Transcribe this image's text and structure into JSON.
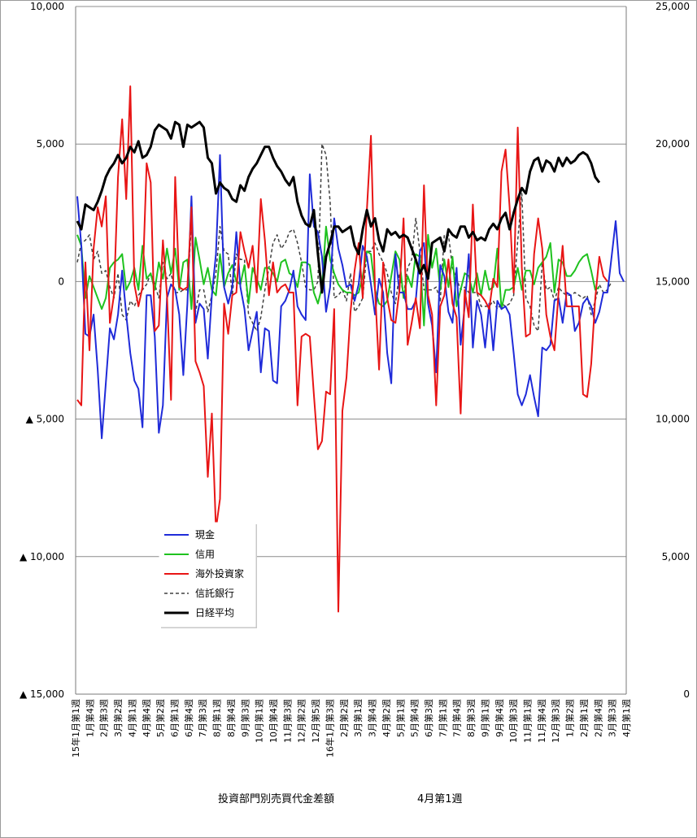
{
  "chart_data": {
    "type": "line",
    "title": "投資部門別売買代金差額",
    "subtitle": "4月第1週",
    "left_axis": {
      "ylim": [
        -15000,
        10000
      ],
      "ticks": [
        {
          "value": 10000,
          "label": "10,000"
        },
        {
          "value": 5000,
          "label": "5,000"
        },
        {
          "value": 0,
          "label": "0"
        },
        {
          "value": -5000,
          "label": "▲ 5,000"
        },
        {
          "value": -10000,
          "label": "▲ 10,000"
        },
        {
          "value": -15000,
          "label": "▲ 15,000"
        }
      ]
    },
    "right_axis": {
      "ylim": [
        0,
        25000
      ],
      "ticks": [
        {
          "value": 25000,
          "label": "25,000"
        },
        {
          "value": 20000,
          "label": "20,000"
        },
        {
          "value": 15000,
          "label": "15,000"
        },
        {
          "value": 10000,
          "label": "10,000"
        },
        {
          "value": 5000,
          "label": "5,000"
        },
        {
          "value": 0,
          "label": "0"
        }
      ]
    },
    "grid": true,
    "legend_position": "lower-left",
    "x_tick_labels": [
      "15年1月第1週",
      "1月第4週",
      "2月第3週",
      "3月第2週",
      "4月第1週",
      "4月第4週",
      "5月第2週",
      "6月第1週",
      "6月第4週",
      "7月第3週",
      "8月第1週",
      "8月第4週",
      "9月第3週",
      "10月第1週",
      "10月第4週",
      "11月第3週",
      "12月第2週",
      "12月第5週",
      "16年1月第3週",
      "2月第2週",
      "3月第1週",
      "3月第4週",
      "4月第2週",
      "5月第1週",
      "5月第4週",
      "6月第3週",
      "7月第1週",
      "7月第4週",
      "8月第3週",
      "9月第1週",
      "9月第4週",
      "10月第3週",
      "11月第1週",
      "11月第4週",
      "12月第3週",
      "1月第2週",
      "2月第1週",
      "2月第4週",
      "3月第3週",
      "4月第1週"
    ],
    "series": [
      {
        "name": "現金",
        "axis": "left",
        "color": "#1f2bd9",
        "style": "solid",
        "values": [
          3100,
          1300,
          -1900,
          -2000,
          -1200,
          -3200,
          -5700,
          -3700,
          -1700,
          -2100,
          -1200,
          400,
          -1200,
          -2600,
          -3600,
          -3900,
          -5300,
          -500,
          -500,
          -2000,
          -5500,
          -4500,
          -600,
          -100,
          -300,
          -1200,
          -3400,
          -800,
          3100,
          -1500,
          -800,
          -1000,
          -2800,
          -500,
          1000,
          4600,
          -200,
          -800,
          -200,
          1800,
          -200,
          -1000,
          -2500,
          -1800,
          -1100,
          -3300,
          -1700,
          -1800,
          -3600,
          -3700,
          -900,
          -700,
          -300,
          400,
          -900,
          -1200,
          -1400,
          3900,
          2000,
          1800,
          900,
          -1100,
          -200,
          2300,
          1200,
          600,
          -200,
          -100,
          -700,
          -100,
          1300,
          900,
          -100,
          -1200,
          100,
          -400,
          -2600,
          -3700,
          1000,
          -400,
          -400,
          -1000,
          -1000,
          -700,
          1100,
          1400,
          -800,
          -1600,
          -3300,
          600,
          200,
          -1100,
          -1500,
          500,
          -2300,
          -900,
          1000,
          -2400,
          -700,
          -1200,
          -2400,
          -800,
          -2500,
          -700,
          -1000,
          -900,
          -1200,
          -2600,
          -4100,
          -4500,
          -4100,
          -3400,
          -4200,
          -4900,
          -2400,
          -2500,
          -2300,
          -700,
          -600,
          -1500,
          -400,
          -500,
          -1800,
          -1500,
          -800,
          -600,
          -900,
          -1500,
          -1100,
          -400,
          -400,
          900,
          2200,
          300,
          0
        ]
      },
      {
        "name": "信用",
        "axis": "left",
        "color": "#1fc21f",
        "style": "solid",
        "values": [
          1700,
          1300,
          -600,
          200,
          -200,
          -600,
          -1000,
          -600,
          500,
          700,
          800,
          1000,
          -300,
          0,
          500,
          -300,
          1300,
          100,
          300,
          -300,
          700,
          100,
          1200,
          300,
          1200,
          -300,
          700,
          800,
          -1000,
          1600,
          800,
          -100,
          500,
          -300,
          -500,
          1000,
          -200,
          300,
          600,
          0,
          -100,
          600,
          -800,
          500,
          100,
          -300,
          500,
          500,
          300,
          0,
          700,
          800,
          300,
          200,
          -200,
          700,
          700,
          600,
          -400,
          -800,
          -200,
          2000,
          800,
          300,
          -100,
          -300,
          -400,
          -400,
          -500,
          -400,
          200,
          1100,
          1000,
          -300,
          -800,
          -900,
          -700,
          200,
          1100,
          800,
          -600,
          200,
          -200,
          1000,
          900,
          -1600,
          1700,
          500,
          1200,
          -300,
          800,
          -200,
          900,
          -900,
          -300,
          300,
          200,
          -400,
          300,
          -500,
          400,
          -300,
          -200,
          1200,
          -1000,
          -300,
          -300,
          -200,
          500,
          -300,
          400,
          400,
          -100,
          500,
          700,
          900,
          1400,
          -400,
          800,
          700,
          200,
          200,
          400,
          700,
          900,
          1000,
          400,
          -300,
          -200
        ]
      },
      {
        "name": "海外投資家",
        "axis": "left",
        "color": "#e81515",
        "style": "solid",
        "values": [
          -4300,
          -4500,
          700,
          -2500,
          1200,
          2700,
          2000,
          3100,
          -1500,
          -500,
          3800,
          5900,
          3000,
          7100,
          -100,
          -900,
          -200,
          4300,
          3600,
          -1800,
          -1600,
          1500,
          -500,
          -4300,
          3800,
          -200,
          -300,
          -200,
          2700,
          -2900,
          -3300,
          -3800,
          -7100,
          -4800,
          -9000,
          -7900,
          -800,
          -1900,
          -500,
          -400,
          1800,
          1100,
          500,
          1300,
          -400,
          3000,
          1500,
          -500,
          700,
          -400,
          -200,
          -100,
          -400,
          -400,
          -4500,
          -2000,
          -1900,
          -2000,
          -4100,
          -6100,
          -5800,
          -4000,
          -4100,
          -1000,
          -12000,
          -4700,
          -3500,
          -1100,
          400,
          1400,
          -600,
          2600,
          5300,
          -300,
          -3200,
          700,
          -600,
          -1400,
          -1500,
          -300,
          2300,
          -2300,
          -1500,
          -600,
          -1700,
          3500,
          -500,
          -1200,
          -4500,
          -900,
          -500,
          800,
          -800,
          -1300,
          -4800,
          -300,
          -1300,
          2800,
          -400,
          -500,
          -700,
          -1000,
          100,
          -200,
          4000,
          4800,
          2700,
          -400,
          5600,
          500,
          -2000,
          -1900,
          1000,
          2300,
          1200,
          -1200,
          -2000,
          -2500,
          -400,
          1300,
          -900,
          -900,
          -900,
          -900,
          -4100,
          -4200,
          -3000,
          -600,
          900,
          200,
          0
        ]
      },
      {
        "name": "信託銀行",
        "axis": "left",
        "color": "#404040",
        "style": "dashed",
        "values": [
          700,
          1400,
          1500,
          1700,
          800,
          1100,
          300,
          400,
          -200,
          -600,
          300,
          -1200,
          -1400,
          -700,
          -900,
          -500,
          -300,
          -100,
          300,
          -100,
          -600,
          700,
          100,
          300,
          -400,
          -400,
          -300,
          -300,
          2100,
          -1100,
          -300,
          -300,
          -1100,
          -500,
          300,
          2000,
          1100,
          1000,
          -500,
          1000,
          800,
          800,
          -1200,
          -1500,
          -1800,
          -1300,
          -300,
          500,
          1400,
          1700,
          1200,
          1400,
          1800,
          1900,
          1400,
          700,
          -200,
          -300,
          -300,
          0,
          5000,
          4600,
          2900,
          -600,
          -500,
          -300,
          -700,
          300,
          -1100,
          -900,
          -600,
          1100,
          1100,
          1400,
          1000,
          700,
          300,
          -400,
          -800,
          300,
          -500,
          500,
          800,
          2300,
          1100,
          -300,
          -300,
          -300,
          -200,
          -700,
          1700,
          1700,
          500,
          100,
          -300,
          -200,
          -400,
          -400,
          -400,
          -900,
          -900,
          -900,
          -700,
          -1000,
          -800,
          -900,
          -800,
          -500,
          1500,
          3200,
          -600,
          -900,
          -1600,
          -1800,
          700,
          -300,
          -200,
          -700,
          -200,
          -400,
          -500,
          -500,
          -400,
          -500,
          -600,
          -500,
          -1200,
          -700,
          -100,
          -400,
          -300,
          0
        ]
      },
      {
        "name": "日経平均",
        "axis": "right",
        "color": "#000000",
        "style": "thick",
        "values": [
          17200,
          16900,
          17800,
          17700,
          17600,
          17900,
          18300,
          18800,
          19100,
          19300,
          19600,
          19300,
          19500,
          19900,
          19700,
          20100,
          19500,
          19600,
          19900,
          20500,
          20700,
          20600,
          20500,
          20200,
          20800,
          20700,
          19900,
          20700,
          20600,
          20700,
          20800,
          20600,
          19500,
          19300,
          18200,
          18600,
          18400,
          18300,
          18000,
          17900,
          18500,
          18300,
          18800,
          19100,
          19300,
          19600,
          19900,
          19900,
          19500,
          19200,
          19000,
          18700,
          18500,
          18800,
          17900,
          17400,
          17100,
          17000,
          17600,
          16000,
          14600,
          15900,
          16400,
          17000,
          17000,
          16800,
          16900,
          17000,
          16300,
          16000,
          16900,
          17600,
          17000,
          17300,
          16500,
          16100,
          16900,
          16700,
          16800,
          16600,
          16700,
          16600,
          16200,
          15800,
          15300,
          15600,
          15100,
          16400,
          16500,
          16600,
          16100,
          16900,
          16700,
          16600,
          17000,
          17000,
          16600,
          16800,
          16500,
          16600,
          16500,
          16900,
          17100,
          16900,
          17300,
          17500,
          16900,
          17500,
          18000,
          18400,
          18200,
          19000,
          19400,
          19500,
          19000,
          19400,
          19300,
          19000,
          19500,
          19200,
          19500,
          19300,
          19400,
          19600,
          19700,
          19600,
          19300,
          18800,
          18600
        ],
        "note": ""
      }
    ]
  }
}
